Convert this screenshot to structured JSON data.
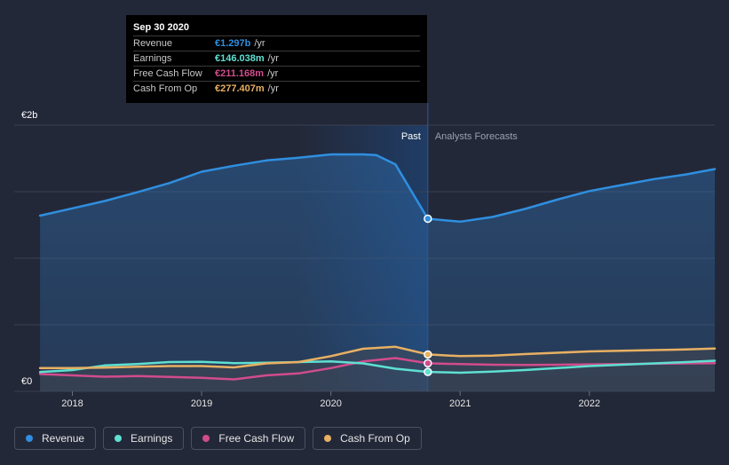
{
  "colors": {
    "revenue": "#2f8fe0",
    "earnings": "#5ee0d2",
    "free_cash_flow": "#d14c8c",
    "cash_from_op": "#e8b063",
    "past_shade": "#1f3f6b"
  },
  "tooltip": {
    "date": "Sep 30 2020",
    "rows": [
      {
        "label": "Revenue",
        "value": "€1.297b",
        "unit": "/yr",
        "color": "#2f8fe0"
      },
      {
        "label": "Earnings",
        "value": "€146.038m",
        "unit": "/yr",
        "color": "#5ee0d2"
      },
      {
        "label": "Free Cash Flow",
        "value": "€211.168m",
        "unit": "/yr",
        "color": "#d14c8c"
      },
      {
        "label": "Cash From Op",
        "value": "€277.407m",
        "unit": "/yr",
        "color": "#e8b063"
      }
    ]
  },
  "chart_data": {
    "type": "line",
    "title": "",
    "xlabel": "",
    "ylabel": "",
    "ylim": [
      0,
      2000
    ],
    "y_unit": "€m",
    "y_tick_labels": [
      {
        "value": 2000,
        "label": "€2b"
      },
      {
        "value": 0,
        "label": "€0"
      }
    ],
    "x_ticks": [
      {
        "x": 2018,
        "label": "2018"
      },
      {
        "x": 2019,
        "label": "2019"
      },
      {
        "x": 2020,
        "label": "2020"
      },
      {
        "x": 2021,
        "label": "2021"
      },
      {
        "x": 2022,
        "label": "2022"
      }
    ],
    "xlim": [
      2017.55,
      2022.97
    ],
    "divider_x": 2020.75,
    "past_label": "Past",
    "forecast_label": "Analysts Forecasts",
    "highlight_x": 2020.75,
    "series": [
      {
        "name": "Revenue",
        "key": "revenue",
        "x": [
          2017.75,
          2018.0,
          2018.25,
          2018.5,
          2018.75,
          2019.0,
          2019.25,
          2019.5,
          2019.75,
          2020.0,
          2020.25,
          2020.35,
          2020.5,
          2020.75,
          2021.0,
          2021.25,
          2021.5,
          2021.75,
          2022.0,
          2022.25,
          2022.5,
          2022.75,
          2022.97
        ],
        "values": [
          1320,
          1375,
          1430,
          1495,
          1565,
          1650,
          1695,
          1735,
          1755,
          1780,
          1780,
          1775,
          1705,
          1297,
          1275,
          1310,
          1370,
          1440,
          1505,
          1550,
          1595,
          1630,
          1670
        ]
      },
      {
        "name": "Earnings",
        "key": "earnings",
        "x": [
          2017.75,
          2018.0,
          2018.25,
          2018.5,
          2018.75,
          2019.0,
          2019.25,
          2019.5,
          2019.75,
          2020.0,
          2020.25,
          2020.5,
          2020.75,
          2021.0,
          2021.25,
          2021.5,
          2021.75,
          2022.0,
          2022.25,
          2022.5,
          2022.75,
          2022.97
        ],
        "values": [
          145,
          160,
          195,
          205,
          220,
          222,
          212,
          215,
          220,
          225,
          210,
          170,
          146,
          140,
          148,
          160,
          175,
          190,
          200,
          210,
          220,
          230
        ]
      },
      {
        "name": "Free Cash Flow",
        "key": "free_cash_flow",
        "x": [
          2017.75,
          2018.0,
          2018.25,
          2018.5,
          2018.75,
          2019.0,
          2019.25,
          2019.5,
          2019.75,
          2020.0,
          2020.25,
          2020.5,
          2020.75,
          2021.0,
          2021.25,
          2021.5,
          2021.75,
          2022.0,
          2022.25,
          2022.5,
          2022.75,
          2022.97
        ],
        "values": [
          130,
          120,
          110,
          115,
          108,
          102,
          90,
          120,
          135,
          175,
          225,
          250,
          211,
          205,
          200,
          198,
          200,
          203,
          205,
          207,
          210,
          212
        ]
      },
      {
        "name": "Cash From Op",
        "key": "cash_from_op",
        "x": [
          2017.75,
          2018.0,
          2018.25,
          2018.5,
          2018.75,
          2019.0,
          2019.25,
          2019.5,
          2019.75,
          2020.0,
          2020.25,
          2020.5,
          2020.75,
          2021.0,
          2021.25,
          2021.5,
          2021.75,
          2022.0,
          2022.25,
          2022.5,
          2022.75,
          2022.97
        ],
        "values": [
          175,
          175,
          178,
          185,
          190,
          190,
          180,
          210,
          220,
          265,
          320,
          335,
          277,
          265,
          268,
          280,
          290,
          300,
          305,
          310,
          315,
          322
        ]
      }
    ]
  },
  "legend": [
    {
      "label": "Revenue",
      "key": "revenue"
    },
    {
      "label": "Earnings",
      "key": "earnings"
    },
    {
      "label": "Free Cash Flow",
      "key": "free_cash_flow"
    },
    {
      "label": "Cash From Op",
      "key": "cash_from_op"
    }
  ]
}
